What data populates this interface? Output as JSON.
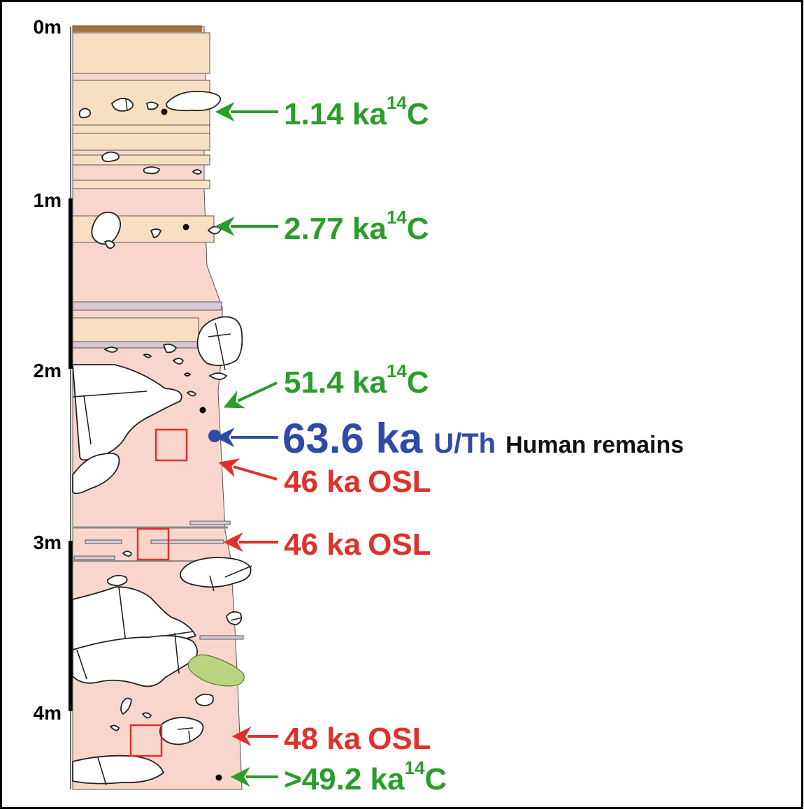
{
  "depth_scale": {
    "ticks": [
      "0m",
      "1m",
      "2m",
      "3m",
      "4m"
    ]
  },
  "dates": [
    {
      "value": "1.14 ka",
      "superscript": "14",
      "method": "C",
      "color": "#2a9d2a",
      "kind": "radiocarbon"
    },
    {
      "value": "2.77 ka",
      "superscript": "14",
      "method": "C",
      "color": "#2a9d2a",
      "kind": "radiocarbon"
    },
    {
      "value": "51.4 ka",
      "superscript": "14",
      "method": "C",
      "color": "#2a9d2a",
      "kind": "radiocarbon"
    },
    {
      "value": "63.6 ka",
      "method": "U/Th",
      "note": "Human remains",
      "color": "#2f4aa8",
      "note_color": "#111111",
      "kind": "uranium-thorium"
    },
    {
      "value": "46 ka",
      "method": "OSL",
      "color": "#e0302a",
      "kind": "osl"
    },
    {
      "value": "46 ka",
      "method": "OSL",
      "color": "#e0302a",
      "kind": "osl"
    },
    {
      "value": "48 ka",
      "method": "OSL",
      "color": "#e0302a",
      "kind": "osl"
    },
    {
      "value": ">49.2 ka",
      "superscript": "14",
      "method": "C",
      "color": "#2a9d2a",
      "kind": "radiocarbon"
    }
  ],
  "palette": {
    "sand_layer": "#f9dfc1",
    "clay_matrix": "#f9d6cc",
    "thin_band": "#d8c8d8",
    "topsoil": "#a8703c",
    "clast": "#ffffff",
    "green_clast": "#b9d37f",
    "sample_box": "#e0302a"
  }
}
